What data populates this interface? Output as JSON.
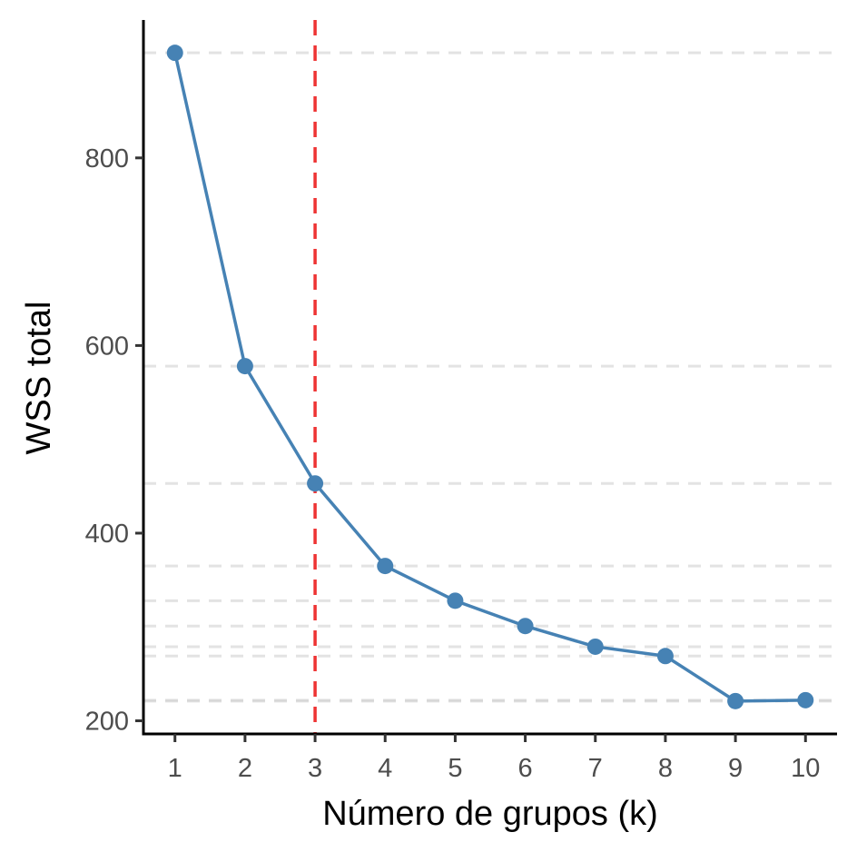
{
  "chart_data": {
    "type": "line",
    "title": "",
    "xlabel": "Número de grupos (k)",
    "ylabel": "WSS total",
    "x": [
      1,
      2,
      3,
      4,
      5,
      6,
      7,
      8,
      9,
      10
    ],
    "series": [
      {
        "values": [
          912,
          578,
          453,
          365,
          328,
          301,
          279,
          269,
          221,
          222
        ]
      }
    ],
    "xlim": [
      0.55,
      10.45
    ],
    "ylim": [
      186,
      947
    ],
    "xticks": [
      "1",
      "2",
      "3",
      "4",
      "5",
      "6",
      "7",
      "8",
      "9",
      "10"
    ],
    "yticks": [
      "200",
      "400",
      "600",
      "800"
    ],
    "reference_lines": {
      "vertical_at_k": 3,
      "horizontal_at_each_point": true
    },
    "legend": "none",
    "grid": false,
    "colors": {
      "series_line": "#4682b4",
      "series_points": "#4682b4",
      "vertical_reference": "#ee3333",
      "horizontal_reference": "#cccccc",
      "axis": "#000000",
      "tick_label": "#4d4d4d"
    }
  }
}
